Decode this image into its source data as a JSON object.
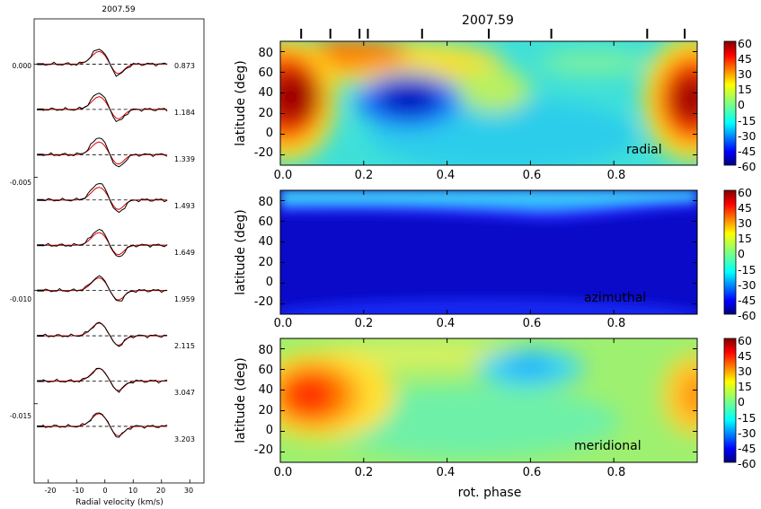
{
  "left_panel": {
    "title": "2007.59",
    "xlabel": "Radial velocity (km/s)",
    "xticks": [
      "-20",
      "-10",
      "0",
      "10",
      "20",
      "30"
    ],
    "yticks": [
      "0.000",
      "-0.005",
      "-0.010",
      "-0.015"
    ],
    "phases": [
      "0.873",
      "1.184",
      "1.339",
      "1.493",
      "1.649",
      "1.959",
      "2.115",
      "3.047",
      "3.203"
    ]
  },
  "right_panel": {
    "title": "2007.59",
    "xlabel": "rot. phase",
    "ylabel": "latitude (deg)",
    "xticks": [
      "0.0",
      "0.2",
      "0.4",
      "0.6",
      "0.8"
    ],
    "yticks": [
      "80",
      "60",
      "40",
      "20",
      "0",
      "-20"
    ],
    "colorbar_ticks": [
      "60",
      "45",
      "30",
      "15",
      "0",
      "-15",
      "-30",
      "-45",
      "-60"
    ],
    "maps": [
      {
        "label": "radial"
      },
      {
        "label": "azimuthal"
      },
      {
        "label": "meridional"
      }
    ]
  },
  "chart_data": [
    {
      "type": "line",
      "title": "2007.59",
      "xlabel": "Radial velocity (km/s)",
      "xlim": [
        -25,
        35
      ],
      "ylim": [
        -0.0185,
        0.002
      ],
      "profile_offsets": [
        0.0,
        -0.002,
        -0.004,
        -0.006,
        -0.008,
        -0.01,
        -0.012,
        -0.014,
        -0.016
      ],
      "rotation_phases": [
        0.873,
        1.184,
        1.339,
        1.493,
        1.649,
        1.959,
        2.115,
        3.047,
        3.203
      ],
      "series_colors": {
        "observed": "#000000",
        "model": "#e00000"
      }
    },
    {
      "type": "heatmap",
      "title": "2007.59",
      "panels": [
        "radial",
        "azimuthal",
        "meridional"
      ],
      "xlabel": "rot. phase",
      "ylabel": "latitude (deg)",
      "xlim": [
        0.0,
        1.0
      ],
      "ylim": [
        -30,
        90
      ],
      "colorbar_range": [
        -60,
        60
      ],
      "observation_phases": [
        0.05,
        0.12,
        0.19,
        0.21,
        0.34,
        0.5,
        0.65,
        0.88,
        0.97
      ],
      "features": [
        {
          "panel": "radial",
          "phase": 0.02,
          "latitude": 35,
          "value": 60
        },
        {
          "panel": "radial",
          "phase": 0.98,
          "latitude": 35,
          "value": 60
        },
        {
          "panel": "radial",
          "phase": 0.3,
          "latitude": 30,
          "value": -55
        },
        {
          "panel": "radial",
          "phase": 0.25,
          "latitude": 75,
          "value": 30
        },
        {
          "panel": "radial",
          "phase": 0.5,
          "latitude": 50,
          "value": 15
        },
        {
          "panel": "azimuthal",
          "phase": 0.5,
          "latitude": 30,
          "value": -60
        },
        {
          "panel": "meridional",
          "phase": 0.05,
          "latitude": 35,
          "value": 45
        },
        {
          "panel": "meridional",
          "phase": 0.58,
          "latitude": 60,
          "value": -20
        },
        {
          "panel": "meridional",
          "phase": 0.98,
          "latitude": 35,
          "value": 35
        }
      ]
    }
  ]
}
